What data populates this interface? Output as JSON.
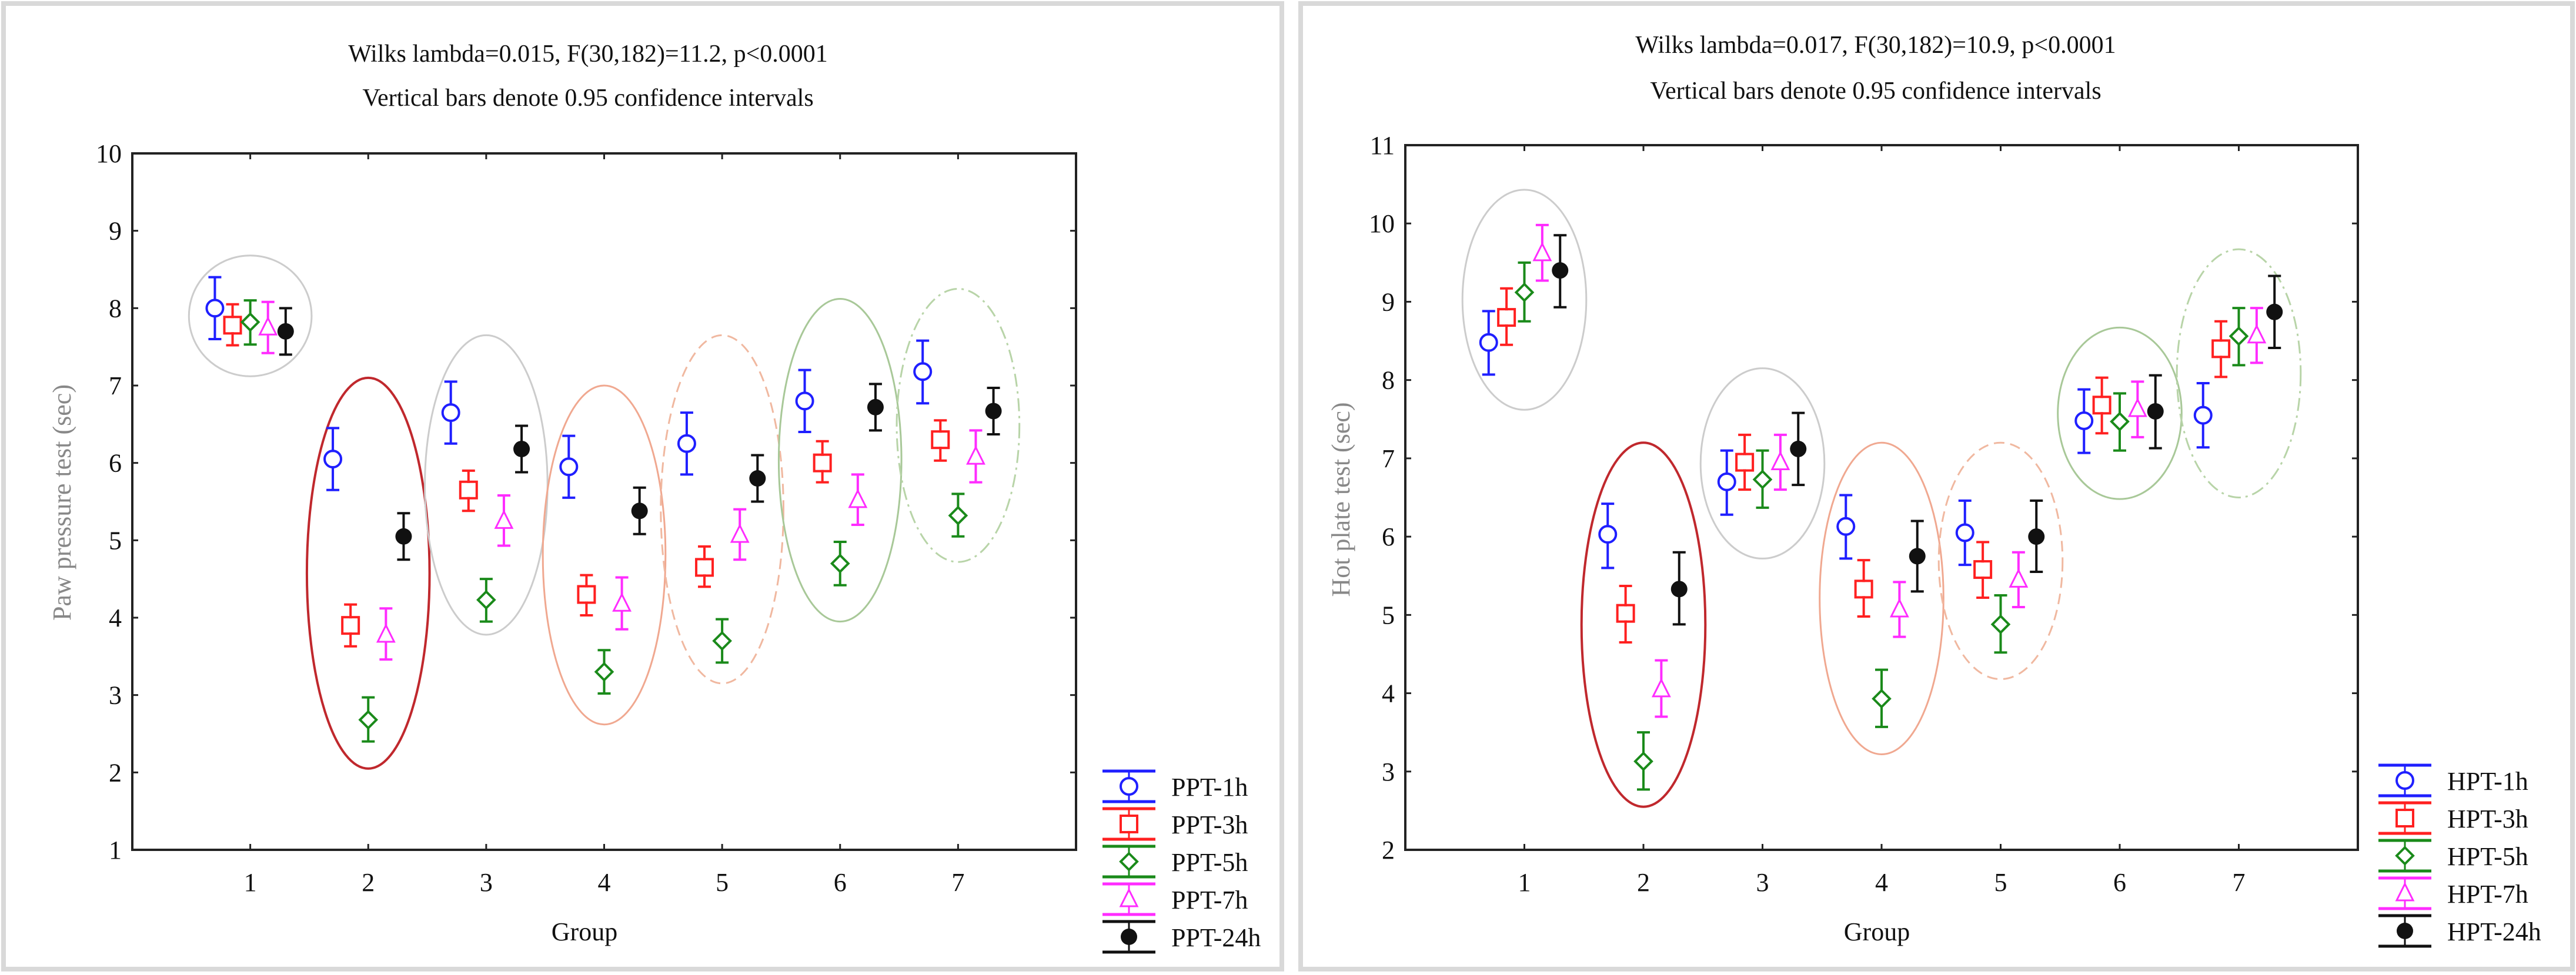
{
  "chart_data": [
    {
      "type": "scatter",
      "subtype": "means-with-error-bars",
      "title": "Wilks lambda=0.015, F(30,182)=11.2, p<0.0001",
      "subtitle": "Vertical bars denote 0.95 confidence intervals",
      "xlabel": "Group",
      "ylabel": "Paw pressure test (sec)",
      "categories": [
        "1",
        "2",
        "3",
        "4",
        "5",
        "6",
        "7"
      ],
      "xlim": [
        0,
        8
      ],
      "ylim": [
        1,
        10
      ],
      "yticks": [
        1,
        2,
        3,
        4,
        5,
        6,
        7,
        8,
        9,
        10
      ],
      "legend_position": "bottom-right-outside",
      "series": [
        {
          "name": "PPT-1h",
          "color": "#1f1fff",
          "marker": "circle-open",
          "values": [
            8.0,
            6.05,
            6.65,
            5.95,
            6.25,
            6.8,
            7.18
          ],
          "ci_low": [
            7.6,
            5.65,
            6.25,
            5.55,
            5.85,
            6.4,
            6.77
          ],
          "ci_high": [
            8.4,
            6.45,
            7.05,
            6.35,
            6.65,
            7.2,
            7.58
          ]
        },
        {
          "name": "PPT-3h",
          "color": "#ff2020",
          "marker": "square-open",
          "values": [
            7.78,
            3.9,
            5.65,
            4.3,
            4.65,
            6.0,
            6.3
          ],
          "ci_low": [
            7.52,
            3.63,
            5.38,
            4.03,
            4.4,
            5.75,
            6.03
          ],
          "ci_high": [
            8.05,
            4.17,
            5.9,
            4.55,
            4.92,
            6.28,
            6.55
          ]
        },
        {
          "name": "PPT-5h",
          "color": "#1a8a1a",
          "marker": "diamond-open",
          "values": [
            7.82,
            2.68,
            4.23,
            3.3,
            3.7,
            4.7,
            5.32
          ],
          "ci_low": [
            7.53,
            2.4,
            3.95,
            3.02,
            3.42,
            4.42,
            5.05
          ],
          "ci_high": [
            8.1,
            2.97,
            4.5,
            3.58,
            3.98,
            4.98,
            5.6
          ]
        },
        {
          "name": "PPT-7h",
          "color": "#ff2cff",
          "marker": "triangle-open",
          "values": [
            7.75,
            3.78,
            5.25,
            4.18,
            5.07,
            5.52,
            6.08
          ],
          "ci_low": [
            7.42,
            3.46,
            4.93,
            3.85,
            4.75,
            5.2,
            5.75
          ],
          "ci_high": [
            8.08,
            4.12,
            5.58,
            4.52,
            5.4,
            5.85,
            6.42
          ]
        },
        {
          "name": "PPT-24h",
          "color": "#111111",
          "marker": "circle-filled",
          "values": [
            7.7,
            5.05,
            6.18,
            5.38,
            5.8,
            6.72,
            6.67
          ],
          "ci_low": [
            7.4,
            4.75,
            5.88,
            5.08,
            5.5,
            6.42,
            6.37
          ],
          "ci_high": [
            8.0,
            5.35,
            6.48,
            5.68,
            6.1,
            7.02,
            6.97
          ]
        }
      ],
      "group_ellipses": [
        {
          "group": 1,
          "ymin": 7.12,
          "ymax": 8.68,
          "color": "#cccccc",
          "style": "solid"
        },
        {
          "group": 2,
          "ymin": 2.05,
          "ymax": 7.1,
          "color": "#c0282d",
          "style": "solid"
        },
        {
          "group": 3,
          "ymin": 3.78,
          "ymax": 7.65,
          "color": "#cccccc",
          "style": "solid"
        },
        {
          "group": 4,
          "ymin": 2.62,
          "ymax": 7.0,
          "color": "#f0a890",
          "style": "solid"
        },
        {
          "group": 5,
          "ymin": 3.15,
          "ymax": 7.65,
          "color": "#f0b8a0",
          "style": "dashed"
        },
        {
          "group": 6,
          "ymin": 3.95,
          "ymax": 8.12,
          "color": "#a8c898",
          "style": "solid"
        },
        {
          "group": 7,
          "ymin": 4.72,
          "ymax": 8.25,
          "color": "#b8d4a8",
          "style": "dashdot"
        }
      ]
    },
    {
      "type": "scatter",
      "subtype": "means-with-error-bars",
      "title": "Wilks lambda=0.017, F(30,182)=10.9, p<0.0001",
      "subtitle": "Vertical bars denote 0.95 confidence intervals",
      "xlabel": "Group",
      "ylabel": "Hot plate test (sec)",
      "categories": [
        "1",
        "2",
        "3",
        "4",
        "5",
        "6",
        "7"
      ],
      "xlim": [
        0,
        8
      ],
      "ylim": [
        2,
        11
      ],
      "yticks": [
        2,
        3,
        4,
        5,
        6,
        7,
        8,
        9,
        10,
        11
      ],
      "legend_position": "bottom-right-outside",
      "series": [
        {
          "name": "HPT-1h",
          "color": "#1f1fff",
          "marker": "circle-open",
          "values": [
            8.48,
            6.03,
            6.7,
            6.13,
            6.05,
            7.48,
            7.55
          ],
          "ci_low": [
            8.07,
            5.6,
            6.28,
            5.72,
            5.64,
            7.07,
            7.14
          ],
          "ci_high": [
            8.88,
            6.42,
            7.1,
            6.53,
            6.46,
            7.88,
            7.96
          ]
        },
        {
          "name": "HPT-3h",
          "color": "#ff2020",
          "marker": "square-open",
          "values": [
            8.8,
            5.02,
            6.95,
            5.33,
            5.58,
            7.68,
            8.4
          ],
          "ci_low": [
            8.45,
            4.65,
            6.6,
            4.98,
            5.22,
            7.32,
            8.04
          ],
          "ci_high": [
            9.17,
            5.37,
            7.3,
            5.7,
            5.93,
            8.03,
            8.75
          ]
        },
        {
          "name": "HPT-5h",
          "color": "#1a8a1a",
          "marker": "diamond-open",
          "values": [
            9.12,
            3.13,
            6.73,
            3.93,
            4.88,
            7.47,
            8.56
          ],
          "ci_low": [
            8.75,
            2.77,
            6.37,
            3.57,
            4.52,
            7.1,
            8.19
          ],
          "ci_high": [
            9.5,
            3.5,
            7.1,
            4.3,
            5.25,
            7.83,
            8.92
          ]
        },
        {
          "name": "HPT-7h",
          "color": "#ff2cff",
          "marker": "triangle-open",
          "values": [
            9.62,
            4.05,
            6.95,
            5.07,
            5.45,
            7.63,
            8.57
          ],
          "ci_low": [
            9.27,
            3.7,
            6.6,
            4.72,
            5.1,
            7.27,
            8.22
          ],
          "ci_high": [
            9.98,
            4.42,
            7.3,
            5.42,
            5.8,
            7.98,
            8.92
          ]
        },
        {
          "name": "HPT-24h",
          "color": "#111111",
          "marker": "circle-filled",
          "values": [
            9.4,
            5.33,
            7.12,
            5.75,
            6.0,
            7.6,
            8.87
          ],
          "ci_low": [
            8.93,
            4.88,
            6.66,
            5.3,
            5.55,
            7.13,
            8.41
          ],
          "ci_high": [
            9.85,
            5.8,
            7.58,
            6.2,
            6.46,
            8.06,
            9.33
          ]
        }
      ],
      "group_ellipses": [
        {
          "group": 1,
          "ymin": 7.62,
          "ymax": 10.43,
          "color": "#cccccc",
          "style": "solid"
        },
        {
          "group": 2,
          "ymin": 2.55,
          "ymax": 7.2,
          "color": "#c0282d",
          "style": "solid"
        },
        {
          "group": 3,
          "ymin": 5.72,
          "ymax": 8.15,
          "color": "#cccccc",
          "style": "solid"
        },
        {
          "group": 4,
          "ymin": 3.22,
          "ymax": 7.2,
          "color": "#f0a890",
          "style": "solid"
        },
        {
          "group": 5,
          "ymin": 4.18,
          "ymax": 7.2,
          "color": "#f0b8a0",
          "style": "dashed"
        },
        {
          "group": 6,
          "ymin": 6.48,
          "ymax": 8.67,
          "color": "#a8c898",
          "style": "solid"
        },
        {
          "group": 7,
          "ymin": 6.5,
          "ymax": 9.67,
          "color": "#b8d4a8",
          "style": "dashdot"
        }
      ]
    }
  ]
}
